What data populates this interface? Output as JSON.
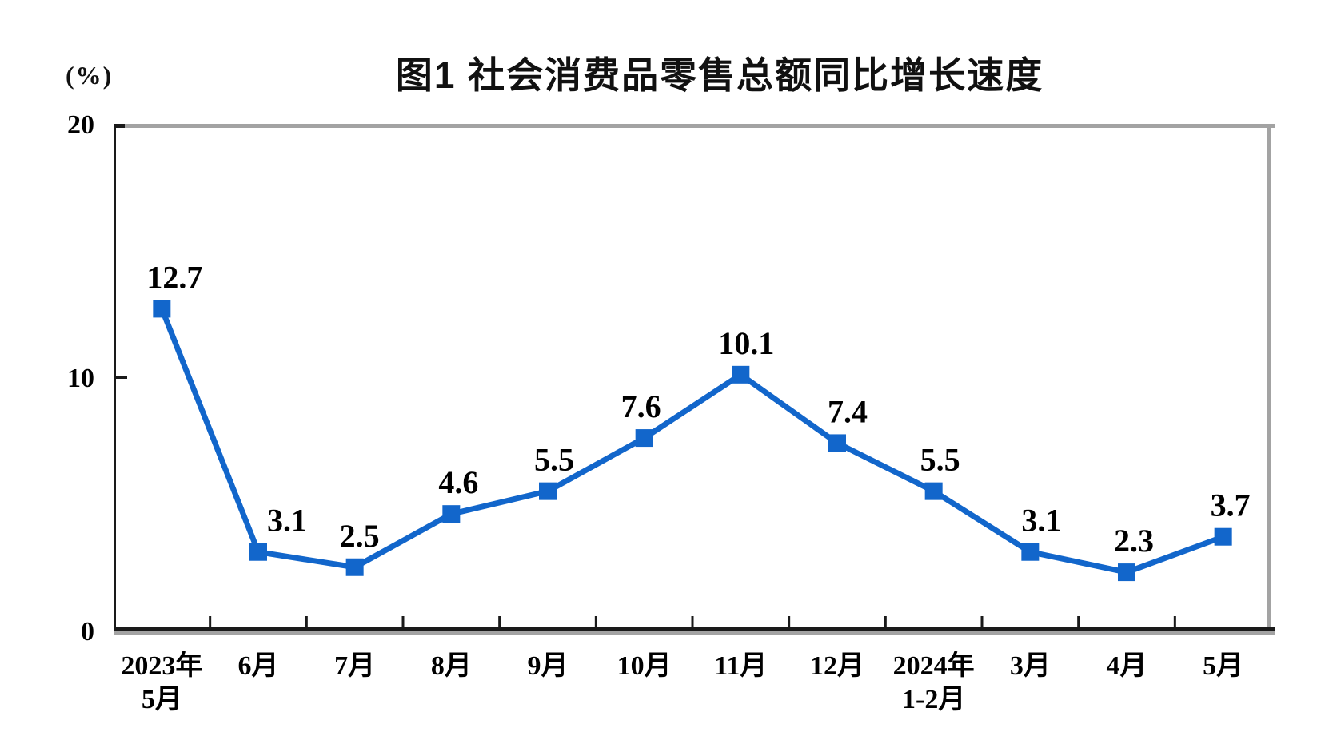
{
  "header": {
    "unit_label": "(%)"
  },
  "chart_data": {
    "type": "line",
    "title": "图1 社会消费品零售总额同比增长速度",
    "ylabel": "(%)",
    "categories": [
      "2023年\n5月",
      "6月",
      "7月",
      "8月",
      "9月",
      "10月",
      "11月",
      "12月",
      "2024年\n1-2月",
      "3月",
      "4月",
      "5月"
    ],
    "values": [
      12.7,
      3.1,
      2.5,
      4.6,
      5.5,
      7.6,
      10.1,
      7.4,
      5.5,
      3.1,
      2.3,
      3.7
    ],
    "data_labels": [
      "12.7",
      "3.1",
      "2.5",
      "4.6",
      "5.5",
      "7.6",
      "10.1",
      "7.4",
      "5.5",
      "3.1",
      "2.3",
      "3.7"
    ],
    "ylim": [
      0,
      20
    ],
    "yticks": [
      0,
      10,
      20
    ],
    "grid": false,
    "legend": "none",
    "marker": "square",
    "layout_hints": {
      "label_dx": [
        16,
        36,
        6,
        9,
        8,
        -4,
        7,
        13,
        8,
        14,
        9,
        9
      ],
      "label_dy": -26
    }
  },
  "colors": {
    "line": "#1266cb",
    "axis_dark": "#1a1a1a",
    "axis_gray": "#a3a3a3",
    "text": "#000000",
    "background": "#ffffff"
  }
}
